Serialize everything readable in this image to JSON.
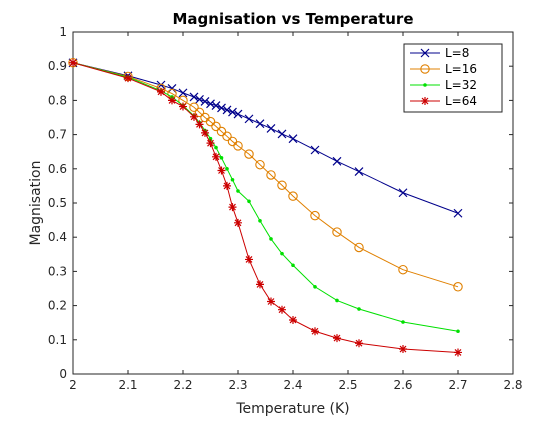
{
  "chart_data": {
    "type": "line",
    "title": "Magnisation vs Temperature",
    "xlabel": "Temperature (K)",
    "ylabel": "Magnisation",
    "xlim": [
      2,
      2.8
    ],
    "ylim": [
      0,
      1
    ],
    "xticks": [
      2,
      2.1,
      2.2,
      2.3,
      2.4,
      2.5,
      2.6,
      2.7,
      2.8
    ],
    "yticks": [
      0,
      0.1,
      0.2,
      0.3,
      0.4,
      0.5,
      0.6,
      0.7,
      0.8,
      0.9,
      1
    ],
    "xtick_labels": [
      "2",
      "2.1",
      "2.2",
      "2.3",
      "2.4",
      "2.5",
      "2.6",
      "2.7",
      "2.8"
    ],
    "ytick_labels": [
      "0",
      "0.1",
      "0.2",
      "0.3",
      "0.4",
      "0.5",
      "0.6",
      "0.7",
      "0.8",
      "0.9",
      "1"
    ],
    "grid": false,
    "legend_position": "top-right",
    "series": [
      {
        "name": "L=8",
        "color": "#00008b",
        "marker": "x",
        "x": [
          2.0,
          2.1,
          2.16,
          2.18,
          2.2,
          2.22,
          2.23,
          2.24,
          2.25,
          2.26,
          2.27,
          2.28,
          2.29,
          2.3,
          2.32,
          2.34,
          2.36,
          2.38,
          2.4,
          2.44,
          2.48,
          2.52,
          2.6,
          2.7
        ],
        "y": [
          0.91,
          0.872,
          0.845,
          0.835,
          0.822,
          0.81,
          0.803,
          0.797,
          0.79,
          0.785,
          0.778,
          0.772,
          0.766,
          0.76,
          0.746,
          0.732,
          0.718,
          0.702,
          0.688,
          0.655,
          0.622,
          0.592,
          0.53,
          0.47
        ]
      },
      {
        "name": "L=16",
        "color": "#e08000",
        "marker": "o",
        "x": [
          2.0,
          2.1,
          2.16,
          2.18,
          2.2,
          2.22,
          2.23,
          2.24,
          2.25,
          2.26,
          2.27,
          2.28,
          2.29,
          2.3,
          2.32,
          2.34,
          2.36,
          2.38,
          2.4,
          2.44,
          2.48,
          2.52,
          2.6,
          2.7
        ],
        "y": [
          0.91,
          0.87,
          0.835,
          0.82,
          0.8,
          0.78,
          0.765,
          0.75,
          0.738,
          0.724,
          0.709,
          0.695,
          0.68,
          0.667,
          0.643,
          0.612,
          0.582,
          0.552,
          0.52,
          0.463,
          0.415,
          0.37,
          0.305,
          0.255
        ]
      },
      {
        "name": "L=32",
        "color": "#00e000",
        "marker": "dot",
        "x": [
          2.0,
          2.1,
          2.16,
          2.18,
          2.2,
          2.22,
          2.23,
          2.24,
          2.25,
          2.26,
          2.27,
          2.28,
          2.29,
          2.3,
          2.32,
          2.34,
          2.36,
          2.38,
          2.4,
          2.44,
          2.48,
          2.52,
          2.6,
          2.7
        ],
        "y": [
          0.91,
          0.868,
          0.828,
          0.81,
          0.785,
          0.755,
          0.735,
          0.712,
          0.688,
          0.662,
          0.632,
          0.6,
          0.568,
          0.535,
          0.505,
          0.448,
          0.395,
          0.352,
          0.318,
          0.255,
          0.215,
          0.19,
          0.152,
          0.125
        ]
      },
      {
        "name": "L=64",
        "color": "#cc0000",
        "marker": "star",
        "x": [
          2.0,
          2.1,
          2.16,
          2.18,
          2.2,
          2.22,
          2.23,
          2.24,
          2.25,
          2.26,
          2.27,
          2.28,
          2.29,
          2.3,
          2.32,
          2.34,
          2.36,
          2.38,
          2.4,
          2.44,
          2.48,
          2.52,
          2.6,
          2.7
        ],
        "y": [
          0.91,
          0.865,
          0.825,
          0.8,
          0.782,
          0.752,
          0.73,
          0.705,
          0.675,
          0.635,
          0.595,
          0.55,
          0.488,
          0.442,
          0.335,
          0.262,
          0.212,
          0.188,
          0.158,
          0.125,
          0.105,
          0.09,
          0.073,
          0.063
        ]
      }
    ]
  }
}
